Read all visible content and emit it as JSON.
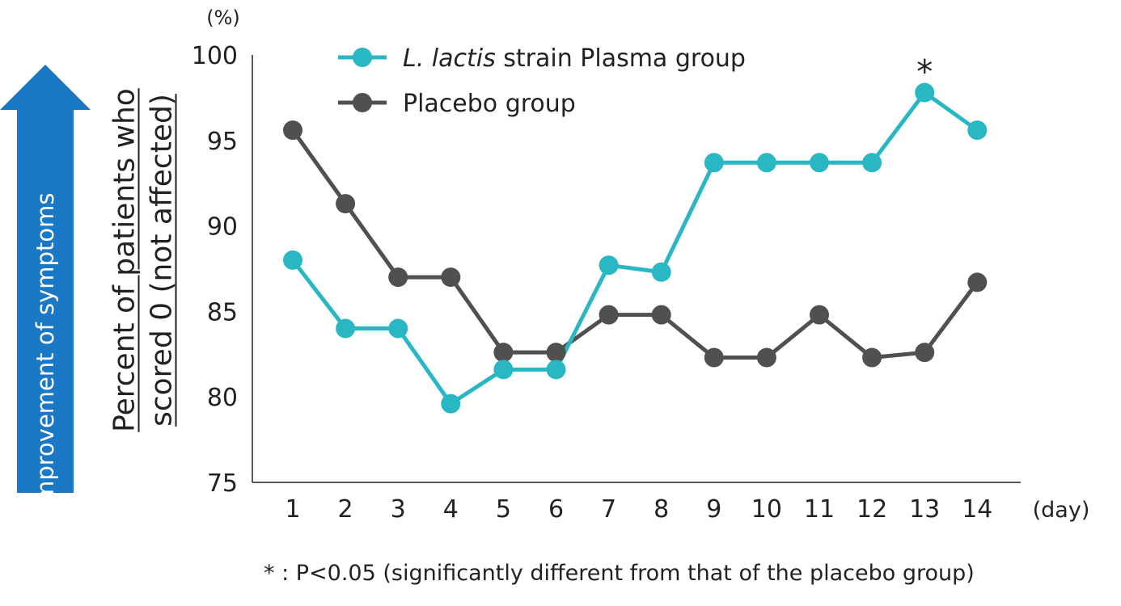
{
  "arrow_label": "Improvement of symptoms",
  "footnote": "* : P<0.05 (significantly different from that of the placebo group)",
  "colors": {
    "lactis": "#2ab7c4",
    "placebo": "#505050",
    "arrow": "#1a78c6",
    "axis": "#222222"
  },
  "chart_data": {
    "type": "line",
    "title": "",
    "ylabel_lines": [
      "Percent of patients who",
      "scored 0 (not affected)"
    ],
    "y_unit": "(%)",
    "x_unit": "(day)",
    "ylim": [
      75,
      100
    ],
    "yticks": [
      75,
      80,
      85,
      90,
      95,
      100
    ],
    "x": [
      1,
      2,
      3,
      4,
      5,
      6,
      7,
      8,
      9,
      10,
      11,
      12,
      13,
      14
    ],
    "grid": false,
    "legend_position": "top",
    "series": [
      {
        "name_italic": "L. lactis",
        "name_rest": " strain Plasma group",
        "color": "#2ab7c4",
        "values": [
          88.0,
          84.0,
          84.0,
          79.6,
          81.6,
          81.6,
          87.7,
          87.3,
          93.7,
          93.7,
          93.7,
          93.7,
          97.8,
          95.6
        ]
      },
      {
        "name": "Placebo group",
        "color": "#505050",
        "values": [
          95.6,
          91.3,
          87.0,
          87.0,
          82.6,
          82.6,
          84.8,
          84.8,
          82.3,
          82.3,
          84.8,
          82.3,
          82.6,
          86.7
        ]
      }
    ],
    "annotations": [
      {
        "x": 13,
        "text": "*"
      }
    ]
  }
}
